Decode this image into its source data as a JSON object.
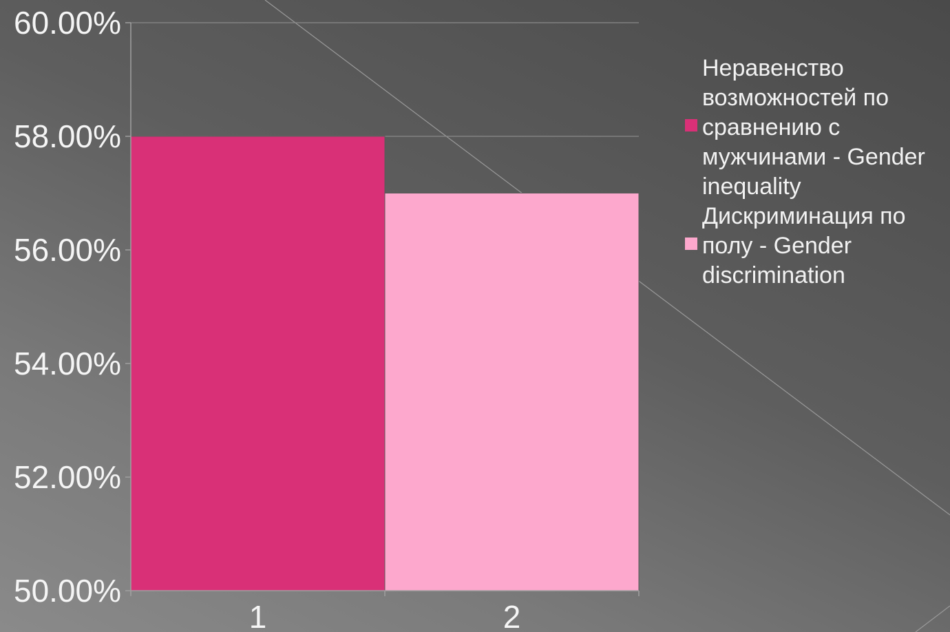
{
  "chart_data": {
    "type": "bar",
    "categories": [
      "1",
      "2"
    ],
    "series": [
      {
        "name": "Неравенство возможностей  по сравнению с мужчинами - Gender inequality",
        "color": "#d93077",
        "values": [
          0.58,
          null
        ]
      },
      {
        "name": "Дискриминация по полу - Gender discrimination",
        "color": "#fda8cd",
        "values": [
          null,
          0.57
        ]
      }
    ],
    "ylim": [
      0.5,
      0.6
    ],
    "yticks": [
      0.5,
      0.52,
      0.54,
      0.56,
      0.58,
      0.6
    ],
    "ytick_labels": [
      "50.00%",
      "52.00%",
      "54.00%",
      "56.00%",
      "58.00%",
      "60.00%"
    ],
    "grid": true,
    "legend_position": "right"
  }
}
